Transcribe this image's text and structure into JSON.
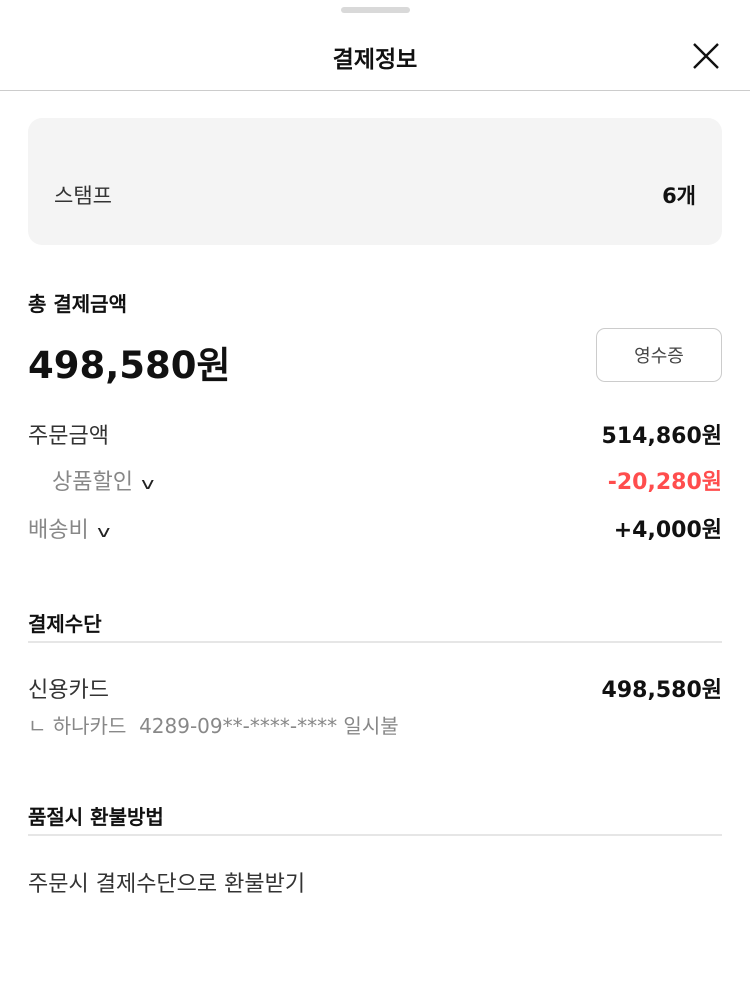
{
  "header": {
    "title": "결제정보",
    "close_icon": "close-icon"
  },
  "stamp": {
    "label": "스탬프",
    "value": "6개"
  },
  "total": {
    "label": "총 결제금액",
    "amount": "498,580원",
    "receipt_button": "영수증"
  },
  "breakdown": [
    {
      "label": "주문금액",
      "value": "514,860원"
    },
    {
      "label": "상품할인",
      "value": "-20,280원",
      "color": "#ff4d4d"
    },
    {
      "label": "배송비",
      "value": "+4,000원"
    }
  ],
  "payment": {
    "title": "결제수단",
    "method": "신용카드",
    "amount": "498,580원",
    "detail": "ㄴ 하나카드  4289-09**-****-**** 일시불"
  },
  "refund": {
    "title": "품절시 환불방법",
    "text": "주문시 결제수단으로 환불받기"
  }
}
